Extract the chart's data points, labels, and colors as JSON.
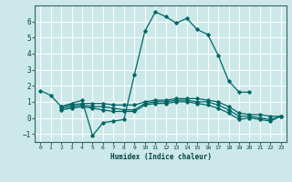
{
  "xlabel": "Humidex (Indice chaleur)",
  "ylabel": "",
  "bg_color": "#cce8e8",
  "grid_color": "#ffffff",
  "line_color": "#006666",
  "xlim": [
    -0.5,
    23.5
  ],
  "ylim": [
    -1.5,
    7.0
  ],
  "xticks": [
    0,
    1,
    2,
    3,
    4,
    5,
    6,
    7,
    8,
    9,
    10,
    11,
    12,
    13,
    14,
    15,
    16,
    17,
    18,
    19,
    20,
    21,
    22,
    23
  ],
  "yticks": [
    -1,
    0,
    1,
    2,
    3,
    4,
    5,
    6
  ],
  "series": [
    {
      "x": [
        0,
        1,
        2,
        3,
        4,
        5,
        6,
        7,
        8,
        9,
        10,
        11,
        12,
        13,
        14,
        15,
        16,
        17,
        18,
        19,
        20
      ],
      "y": [
        1.7,
        1.4,
        0.7,
        0.9,
        1.1,
        -1.1,
        -0.3,
        -0.2,
        -0.1,
        2.7,
        5.4,
        6.6,
        6.3,
        5.9,
        6.2,
        5.5,
        5.2,
        3.9,
        2.3,
        1.6,
        1.6
      ]
    },
    {
      "x": [
        2,
        3,
        4,
        5,
        6,
        7,
        8,
        9,
        10,
        11,
        12,
        13,
        14,
        15,
        16,
        17,
        18,
        19,
        20,
        21,
        22,
        23
      ],
      "y": [
        0.7,
        0.8,
        0.9,
        0.9,
        0.9,
        0.8,
        0.8,
        0.8,
        1.0,
        1.1,
        1.1,
        1.2,
        1.2,
        1.2,
        1.1,
        1.0,
        0.7,
        0.3,
        0.2,
        0.2,
        0.1,
        0.1
      ]
    },
    {
      "x": [
        2,
        3,
        4,
        5,
        6,
        7,
        8,
        9,
        10,
        11,
        12,
        13,
        14,
        15,
        16,
        17,
        18,
        19,
        20,
        21,
        22,
        23
      ],
      "y": [
        0.6,
        0.7,
        0.8,
        0.7,
        0.7,
        0.6,
        0.5,
        0.5,
        0.9,
        1.0,
        1.0,
        1.1,
        1.1,
        1.0,
        1.0,
        0.8,
        0.5,
        0.1,
        0.1,
        0.0,
        -0.1,
        0.1
      ]
    },
    {
      "x": [
        2,
        3,
        4,
        5,
        6,
        7,
        8,
        9,
        10,
        11,
        12,
        13,
        14,
        15,
        16,
        17,
        18,
        19,
        20,
        21,
        22,
        23
      ],
      "y": [
        0.5,
        0.6,
        0.7,
        0.6,
        0.5,
        0.4,
        0.4,
        0.4,
        0.8,
        0.9,
        0.9,
        1.0,
        1.0,
        0.9,
        0.8,
        0.6,
        0.3,
        -0.1,
        0.0,
        -0.1,
        -0.2,
        0.1
      ]
    }
  ]
}
